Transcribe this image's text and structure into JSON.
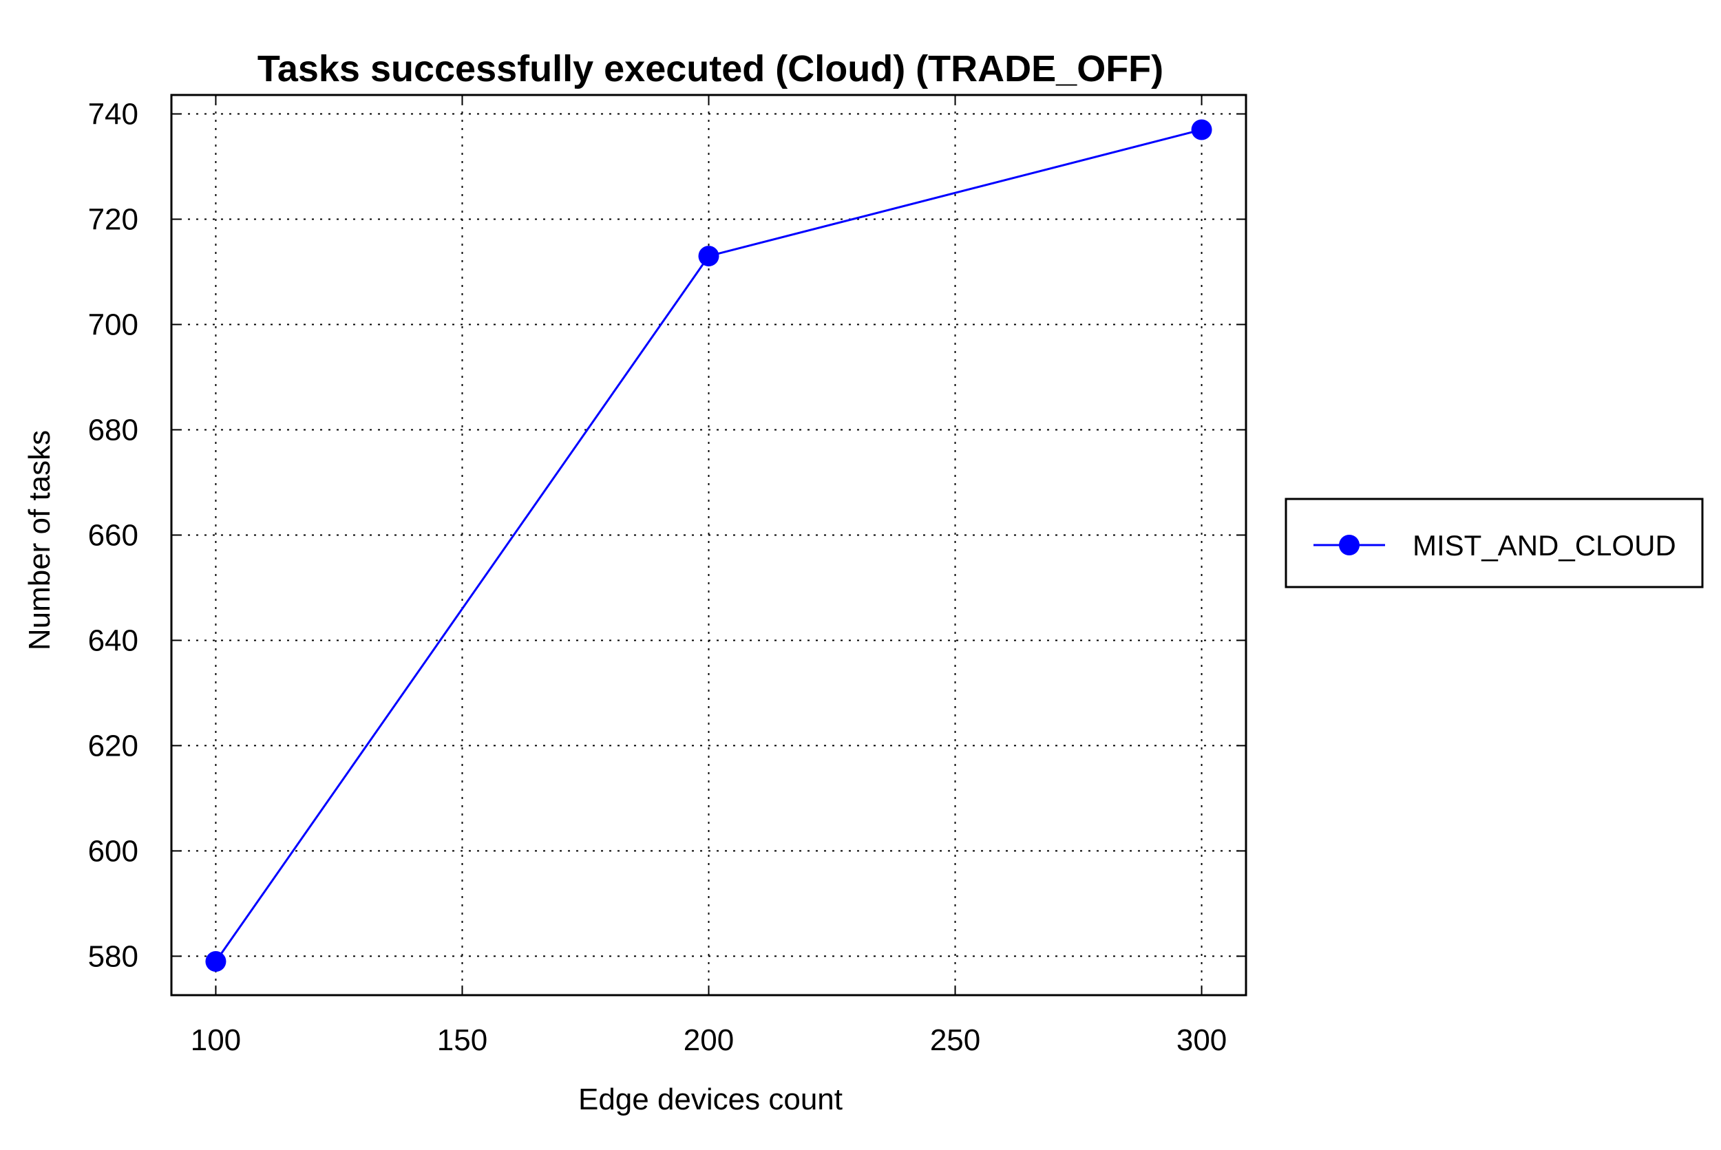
{
  "chart_data": {
    "type": "line",
    "title": "Tasks successfully executed (Cloud) (TRADE_OFF)",
    "xlabel": "Edge devices count",
    "ylabel": "Number of tasks",
    "x": [
      100,
      200,
      300
    ],
    "series": [
      {
        "name": "MIST_AND_CLOUD",
        "values": [
          579,
          713,
          737
        ],
        "color": "#0000ff",
        "marker": "circle"
      }
    ],
    "xlim": [
      91,
      309
    ],
    "ylim": [
      572.6,
      743.6
    ],
    "xticks": [
      100,
      150,
      200,
      250,
      300
    ],
    "yticks": [
      580,
      600,
      620,
      640,
      660,
      680,
      700,
      720,
      740
    ],
    "xtick_labels": [
      "100",
      "150",
      "200",
      "250",
      "300"
    ],
    "ytick_labels": [
      "580",
      "600",
      "620",
      "640",
      "660",
      "680",
      "700",
      "720",
      "740"
    ],
    "grid": true,
    "grid_style": "dotted",
    "legend_position": "outside-right",
    "axis_color": "#000000"
  }
}
